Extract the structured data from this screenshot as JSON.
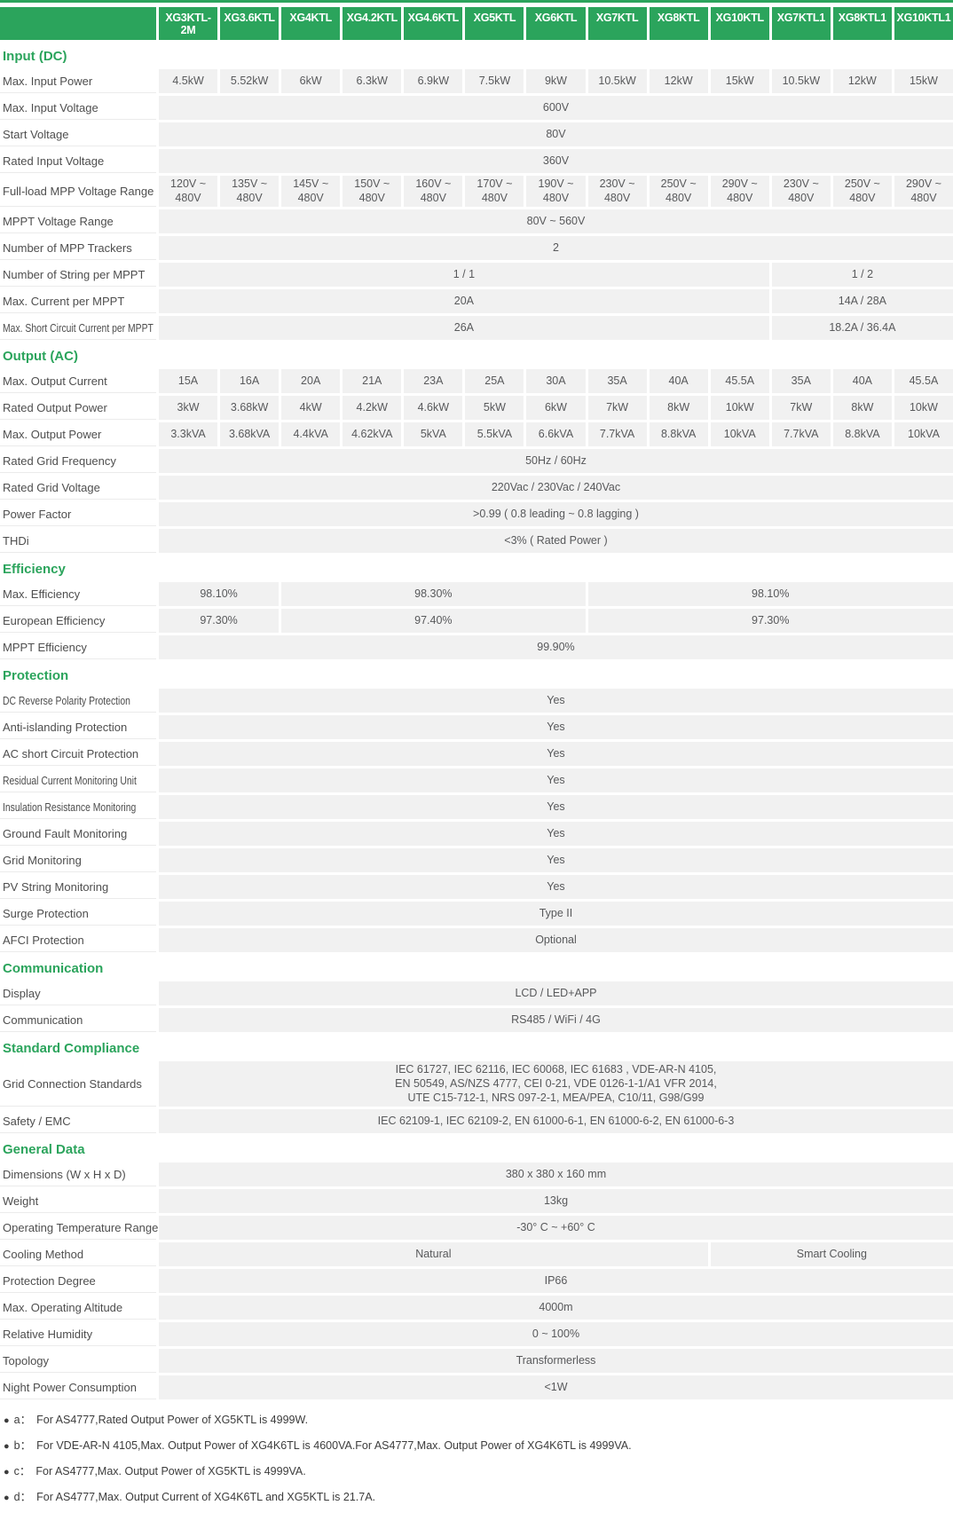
{
  "colors": {
    "green": "#2ba45c",
    "cell_bg": "#f1f1f1"
  },
  "header": {
    "models": [
      "XG3KTL-2M",
      "XG3.6KTL",
      "XG4KTL",
      "XG4.2KTL",
      "XG4.6KTL",
      "XG5KTL",
      "XG6KTL",
      "XG7KTL",
      "XG8KTL",
      "XG10KTL",
      "XG7KTL1",
      "XG8KTL1",
      "XG10KTL1"
    ]
  },
  "sections": [
    {
      "title": "Input (DC)",
      "rows": [
        {
          "label": "Max. Input Power",
          "cells": [
            {
              "t": "4.5kW",
              "s": 1
            },
            {
              "t": "5.52kW",
              "s": 1
            },
            {
              "t": "6kW",
              "s": 1
            },
            {
              "t": "6.3kW",
              "s": 1
            },
            {
              "t": "6.9kW",
              "s": 1
            },
            {
              "t": "7.5kW",
              "s": 1
            },
            {
              "t": "9kW",
              "s": 1
            },
            {
              "t": "10.5kW",
              "s": 1
            },
            {
              "t": "12kW",
              "s": 1
            },
            {
              "t": "15kW",
              "s": 1
            },
            {
              "t": "10.5kW",
              "s": 1
            },
            {
              "t": "12kW",
              "s": 1
            },
            {
              "t": "15kW",
              "s": 1
            }
          ]
        },
        {
          "label": "Max. Input Voltage",
          "cells": [
            {
              "t": "600V",
              "s": 13
            }
          ]
        },
        {
          "label": "Start Voltage",
          "cells": [
            {
              "t": "80V",
              "s": 13
            }
          ]
        },
        {
          "label": "Rated Input Voltage",
          "cells": [
            {
              "t": "360V",
              "s": 13
            }
          ]
        },
        {
          "label": "Full-load MPP Voltage Range",
          "cells": [
            {
              "t": "120V ~ 480V",
              "s": 1
            },
            {
              "t": "135V ~ 480V",
              "s": 1
            },
            {
              "t": "145V ~ 480V",
              "s": 1
            },
            {
              "t": "150V ~ 480V",
              "s": 1
            },
            {
              "t": "160V ~ 480V",
              "s": 1
            },
            {
              "t": "170V ~ 480V",
              "s": 1
            },
            {
              "t": "190V ~ 480V",
              "s": 1
            },
            {
              "t": "230V ~ 480V",
              "s": 1
            },
            {
              "t": "250V ~ 480V",
              "s": 1
            },
            {
              "t": "290V ~ 480V",
              "s": 1
            },
            {
              "t": "230V ~ 480V",
              "s": 1
            },
            {
              "t": "250V ~ 480V",
              "s": 1
            },
            {
              "t": "290V ~ 480V",
              "s": 1
            }
          ]
        },
        {
          "label": "MPPT Voltage Range",
          "cells": [
            {
              "t": "80V ~ 560V",
              "s": 13
            }
          ]
        },
        {
          "label": "Number of MPP Trackers",
          "cells": [
            {
              "t": "2",
              "s": 13
            }
          ]
        },
        {
          "label": "Number of String per MPPT",
          "cells": [
            {
              "t": "1 / 1",
              "s": 10
            },
            {
              "t": "1 / 2",
              "s": 3
            }
          ]
        },
        {
          "label": "Max. Current per MPPT",
          "cells": [
            {
              "t": "20A",
              "s": 10
            },
            {
              "t": "14A / 28A",
              "s": 3
            }
          ]
        },
        {
          "label": "Max. Short Circuit Current per MPPT",
          "cells": [
            {
              "t": "26A",
              "s": 10
            },
            {
              "t": "18.2A / 36.4A",
              "s": 3
            }
          ]
        }
      ]
    },
    {
      "title": "Output (AC)",
      "rows": [
        {
          "label": "Max. Output Current",
          "cells": [
            {
              "t": "15A",
              "s": 1
            },
            {
              "t": "16A",
              "s": 1
            },
            {
              "t": "20A",
              "s": 1
            },
            {
              "t": "21A",
              "s": 1
            },
            {
              "t": "23A",
              "s": 1
            },
            {
              "t": "25A",
              "s": 1
            },
            {
              "t": "30A",
              "s": 1
            },
            {
              "t": "35A",
              "s": 1
            },
            {
              "t": "40A",
              "s": 1
            },
            {
              "t": "45.5A",
              "s": 1
            },
            {
              "t": "35A",
              "s": 1
            },
            {
              "t": "40A",
              "s": 1
            },
            {
              "t": "45.5A",
              "s": 1
            }
          ]
        },
        {
          "label": "Rated Output Power",
          "cells": [
            {
              "t": "3kW",
              "s": 1
            },
            {
              "t": "3.68kW",
              "s": 1
            },
            {
              "t": "4kW",
              "s": 1
            },
            {
              "t": "4.2kW",
              "s": 1
            },
            {
              "t": "4.6kW",
              "s": 1
            },
            {
              "t": "5kW",
              "s": 1
            },
            {
              "t": "6kW",
              "s": 1
            },
            {
              "t": "7kW",
              "s": 1
            },
            {
              "t": "8kW",
              "s": 1
            },
            {
              "t": "10kW",
              "s": 1
            },
            {
              "t": "7kW",
              "s": 1
            },
            {
              "t": "8kW",
              "s": 1
            },
            {
              "t": "10kW",
              "s": 1
            }
          ]
        },
        {
          "label": "Max. Output Power",
          "cells": [
            {
              "t": "3.3kVA",
              "s": 1
            },
            {
              "t": "3.68kVA",
              "s": 1
            },
            {
              "t": "4.4kVA",
              "s": 1
            },
            {
              "t": "4.62kVA",
              "s": 1
            },
            {
              "t": "5kVA",
              "s": 1
            },
            {
              "t": "5.5kVA",
              "s": 1
            },
            {
              "t": "6.6kVA",
              "s": 1
            },
            {
              "t": "7.7kVA",
              "s": 1
            },
            {
              "t": "8.8kVA",
              "s": 1
            },
            {
              "t": "10kVA",
              "s": 1
            },
            {
              "t": "7.7kVA",
              "s": 1
            },
            {
              "t": "8.8kVA",
              "s": 1
            },
            {
              "t": "10kVA",
              "s": 1
            }
          ]
        },
        {
          "label": "Rated Grid Frequency",
          "cells": [
            {
              "t": "50Hz / 60Hz",
              "s": 13
            }
          ]
        },
        {
          "label": "Rated Grid Voltage",
          "cells": [
            {
              "t": "220Vac / 230Vac / 240Vac",
              "s": 13
            }
          ]
        },
        {
          "label": "Power Factor",
          "cells": [
            {
              "t": ">0.99 ( 0.8 leading ~ 0.8 lagging )",
              "s": 13
            }
          ]
        },
        {
          "label": "THDi",
          "cells": [
            {
              "t": "<3% ( Rated Power )",
              "s": 13
            }
          ]
        }
      ]
    },
    {
      "title": "Efficiency",
      "rows": [
        {
          "label": "Max. Efficiency",
          "cells": [
            {
              "t": "98.10%",
              "s": 2
            },
            {
              "t": "98.30%",
              "s": 5
            },
            {
              "t": "98.10%",
              "s": 6
            }
          ]
        },
        {
          "label": "European Efficiency",
          "cells": [
            {
              "t": "97.30%",
              "s": 2
            },
            {
              "t": "97.40%",
              "s": 5
            },
            {
              "t": "97.30%",
              "s": 6
            }
          ]
        },
        {
          "label": "MPPT Efficiency",
          "cells": [
            {
              "t": "99.90%",
              "s": 13
            }
          ]
        }
      ]
    },
    {
      "title": "Protection",
      "rows": [
        {
          "label": "DC Reverse Polarity Protection",
          "cells": [
            {
              "t": "Yes",
              "s": 13
            }
          ]
        },
        {
          "label": "Anti-islanding Protection",
          "cells": [
            {
              "t": "Yes",
              "s": 13
            }
          ]
        },
        {
          "label": "AC short Circuit Protection",
          "cells": [
            {
              "t": "Yes",
              "s": 13
            }
          ]
        },
        {
          "label": "Residual Current Monitoring Unit",
          "cells": [
            {
              "t": "Yes",
              "s": 13
            }
          ]
        },
        {
          "label": "Insulation Resistance Monitoring",
          "cells": [
            {
              "t": "Yes",
              "s": 13
            }
          ]
        },
        {
          "label": "Ground Fault Monitoring",
          "cells": [
            {
              "t": "Yes",
              "s": 13
            }
          ]
        },
        {
          "label": "Grid Monitoring",
          "cells": [
            {
              "t": "Yes",
              "s": 13
            }
          ]
        },
        {
          "label": "PV String Monitoring",
          "cells": [
            {
              "t": "Yes",
              "s": 13
            }
          ]
        },
        {
          "label": "Surge Protection",
          "cells": [
            {
              "t": "Type II",
              "s": 13
            }
          ]
        },
        {
          "label": "AFCI Protection",
          "cells": [
            {
              "t": "Optional",
              "s": 13
            }
          ]
        }
      ]
    },
    {
      "title": "Communication",
      "rows": [
        {
          "label": "Display",
          "cells": [
            {
              "t": "LCD / LED+APP",
              "s": 13
            }
          ]
        },
        {
          "label": "Communication",
          "cells": [
            {
              "t": "RS485 / WiFi / 4G",
              "s": 13
            }
          ]
        }
      ]
    },
    {
      "title": "Standard Compliance",
      "rows": [
        {
          "label": "Grid Connection Standards",
          "cells": [
            {
              "t": "IEC 61727, IEC 62116, IEC 60068, IEC 61683 , VDE-AR-N 4105,\nEN 50549, AS/NZS 4777, CEI 0-21, VDE 0126-1-1/A1 VFR 2014,\nUTE C15-712-1, NRS 097-2-1, MEA/PEA, C10/11, G98/G99",
              "s": 13
            }
          ]
        },
        {
          "label": "Safety / EMC",
          "cells": [
            {
              "t": "IEC 62109-1, IEC 62109-2, EN 61000-6-1, EN 61000-6-2, EN 61000-6-3",
              "s": 13
            }
          ]
        }
      ]
    },
    {
      "title": "General Data",
      "rows": [
        {
          "label": "Dimensions (W x H x D)",
          "cells": [
            {
              "t": "380 x 380 x 160 mm",
              "s": 13
            }
          ]
        },
        {
          "label": "Weight",
          "cells": [
            {
              "t": "13kg",
              "s": 13
            }
          ]
        },
        {
          "label": "Operating Temperature Range",
          "cells": [
            {
              "t": "-30° C ~ +60° C",
              "s": 13
            }
          ]
        },
        {
          "label": "Cooling Method",
          "cells": [
            {
              "t": "Natural",
              "s": 9
            },
            {
              "t": "Smart Cooling",
              "s": 4
            }
          ]
        },
        {
          "label": "Protection Degree",
          "cells": [
            {
              "t": "IP66",
              "s": 13
            }
          ]
        },
        {
          "label": "Max. Operating Altitude",
          "cells": [
            {
              "t": "4000m",
              "s": 13
            }
          ]
        },
        {
          "label": "Relative Humidity",
          "cells": [
            {
              "t": "0 ~ 100%",
              "s": 13
            }
          ]
        },
        {
          "label": "Topology",
          "cells": [
            {
              "t": "Transformerless",
              "s": 13
            }
          ]
        },
        {
          "label": "Night Power Consumption",
          "cells": [
            {
              "t": "<1W",
              "s": 13
            }
          ]
        }
      ]
    }
  ],
  "footnotes": {
    "bullet": "●",
    "items": [
      {
        "key": "a：",
        "text": "For AS4777,Rated Output Power of XG5KTL is 4999W."
      },
      {
        "key": "b：",
        "text": "For VDE-AR-N 4105,Max. Output Power of XG4K6TL is 4600VA.For AS4777,Max. Output Power of XG4K6TL is 4999VA."
      },
      {
        "key": "c：",
        "text": "For AS4777,Max. Output Power of XG5KTL is 4999VA."
      },
      {
        "key": "d：",
        "text": "For AS4777,Max. Output Current of XG4K6TL and XG5KTL is 21.7A."
      }
    ]
  }
}
